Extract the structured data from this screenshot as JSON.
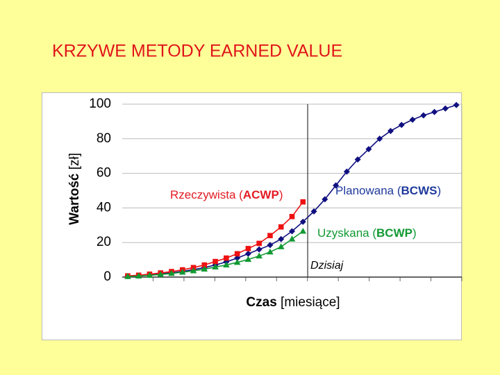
{
  "chart_data": {
    "type": "line",
    "title": "KRZYWE METODY EARNED VALUE",
    "ylabel": [
      "Wartość",
      " [zł]"
    ],
    "xlabel": [
      "Czas",
      " [miesiące]"
    ],
    "x": [
      1,
      2,
      3,
      4,
      5,
      6,
      7,
      8,
      9,
      10,
      11,
      12,
      13,
      14,
      15,
      16,
      17,
      18,
      19,
      20,
      21,
      22,
      23,
      24,
      25,
      26,
      27,
      28,
      29,
      30,
      31
    ],
    "xlim": [
      0.5,
      31.5
    ],
    "ylim": [
      0,
      100
    ],
    "yticks": [
      0,
      20,
      40,
      60,
      80,
      100
    ],
    "grid": true,
    "today": {
      "x": 17.43,
      "label": "Dzisiaj"
    },
    "series": [
      {
        "label": [
          "Planowana (",
          "BCWS",
          ")"
        ],
        "color": "#101080",
        "text_color": "#1f3a9c",
        "marker": "diamond",
        "values": [
          0.5,
          0.8,
          1.2,
          1.8,
          2.5,
          3.3,
          4.3,
          5.5,
          7,
          8.8,
          11,
          13.5,
          16,
          18.5,
          22,
          26.5,
          32,
          38,
          45,
          53,
          61,
          68,
          74,
          80,
          84.5,
          88,
          91,
          93.5,
          95.5,
          97.5,
          99.5
        ]
      },
      {
        "label": [
          "Rzeczywista (",
          "ACWP",
          ")"
        ],
        "color": "#ee1111",
        "text_color": "#e31b23",
        "marker": "square",
        "values": [
          0.7,
          1.1,
          1.7,
          2.4,
          3.2,
          4.2,
          5.5,
          7,
          9,
          11,
          13.5,
          16.5,
          19.5,
          24,
          29,
          35,
          43.5,
          null,
          null,
          null,
          null,
          null,
          null,
          null,
          null,
          null,
          null,
          null,
          null,
          null,
          null
        ]
      },
      {
        "label": [
          "Uzyskana (",
          "BCWP",
          ")"
        ],
        "color": "#119933",
        "text_color": "#119933",
        "marker": "triangle",
        "values": [
          0.3,
          0.6,
          1,
          1.5,
          2.1,
          2.8,
          3.6,
          4.6,
          5.8,
          7,
          8.5,
          10.2,
          12.2,
          14.5,
          17.5,
          22,
          26.5,
          null,
          null,
          null,
          null,
          null,
          null,
          null,
          null,
          null,
          null,
          null,
          null,
          null,
          null
        ]
      }
    ]
  }
}
